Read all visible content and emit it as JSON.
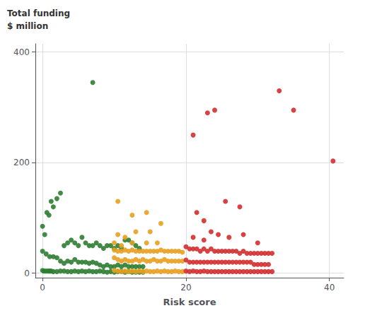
{
  "chart_data": {
    "type": "scatter",
    "xlabel": "Risk score",
    "ylabel": "Total funding\n$ million",
    "xlim": [
      -1,
      42
    ],
    "ylim": [
      -8,
      415
    ],
    "xticks": [
      0,
      20,
      40
    ],
    "yticks": [
      0,
      200,
      400
    ],
    "grid": true,
    "series": [
      {
        "color": "#2e7d32",
        "x": [
          0.0,
          0.3,
          0.6,
          0.9,
          1.2,
          1.5,
          2.0,
          2.5,
          3.0,
          3.5,
          4.0,
          4.5,
          5.0,
          5.5,
          6.0,
          6.5,
          7.0,
          7.5,
          8.0,
          8.5,
          9.0,
          9.5,
          10.0,
          10.5,
          11.0,
          11.5,
          12.0,
          12.5,
          13.0,
          13.5,
          7.0,
          0.0,
          0.5,
          1.0,
          1.5,
          2.0,
          2.5,
          3.0,
          3.5,
          4.0,
          4.5,
          5.0,
          5.5,
          6.0,
          6.5,
          7.0,
          7.5,
          8.0,
          8.5,
          9.0,
          9.5,
          10.0,
          10.5,
          11.0,
          11.5,
          12.0,
          12.5,
          13.0,
          13.5,
          14.0,
          0.0,
          0.2,
          0.5,
          0.8,
          1.0,
          1.2,
          1.5,
          2.0,
          2.5,
          3.0,
          3.5,
          4.0,
          4.5,
          5.0,
          5.5,
          6.0,
          6.5,
          7.0,
          7.5,
          8.0,
          8.5,
          9.0,
          9.5,
          10.0,
          10.5,
          11.0,
          11.5,
          12.0,
          12.5,
          13.0,
          13.5,
          14.0
        ],
        "values": [
          85,
          70,
          110,
          105,
          130,
          120,
          135,
          145,
          50,
          55,
          60,
          55,
          50,
          65,
          55,
          50,
          50,
          55,
          50,
          45,
          50,
          50,
          45,
          50,
          45,
          60,
          60,
          55,
          50,
          45,
          345,
          40,
          35,
          30,
          30,
          28,
          22,
          18,
          22,
          20,
          25,
          20,
          20,
          20,
          18,
          20,
          18,
          15,
          12,
          15,
          12,
          12,
          15,
          12,
          15,
          12,
          12,
          12,
          12,
          12,
          5,
          4,
          4,
          4,
          4,
          4,
          3,
          3,
          4,
          4,
          3,
          3,
          4,
          3,
          4,
          3,
          4,
          3,
          3,
          4,
          3,
          2,
          3,
          2,
          3,
          3,
          2,
          3,
          2,
          2,
          2,
          2
        ]
      },
      {
        "color": "#e8a020",
        "x": [
          10.5,
          12.5,
          14.5,
          16.5,
          10.5,
          11.5,
          13.0,
          15.0,
          10.0,
          11.0,
          12.5,
          14.5,
          16.0,
          10.0,
          10.5,
          11.0,
          11.5,
          12.0,
          12.5,
          13.0,
          13.5,
          14.0,
          14.5,
          15.0,
          15.5,
          16.0,
          16.5,
          17.0,
          17.5,
          18.0,
          18.5,
          19.0,
          19.5,
          10.0,
          10.5,
          11.0,
          11.5,
          12.0,
          12.5,
          13.0,
          13.5,
          14.0,
          14.5,
          15.0,
          15.5,
          16.0,
          16.5,
          17.0,
          17.5,
          18.0,
          18.5,
          19.0,
          19.5,
          10.0,
          10.5,
          11.0,
          11.5,
          12.0,
          12.5,
          13.0,
          13.5,
          14.0,
          14.5,
          15.0,
          15.5,
          16.0,
          16.5,
          17.0,
          17.5,
          18.0,
          18.5,
          19.0,
          19.5
        ],
        "values": [
          130,
          105,
          110,
          90,
          70,
          65,
          75,
          75,
          55,
          50,
          55,
          55,
          55,
          42,
          40,
          40,
          42,
          40,
          42,
          40,
          40,
          40,
          40,
          40,
          40,
          40,
          42,
          40,
          40,
          40,
          40,
          40,
          38,
          28,
          25,
          22,
          25,
          22,
          22,
          25,
          22,
          25,
          22,
          22,
          25,
          22,
          22,
          25,
          22,
          22,
          22,
          22,
          22,
          5,
          4,
          3,
          4,
          3,
          4,
          3,
          4,
          3,
          4,
          3,
          3,
          4,
          3,
          4,
          3,
          3,
          4,
          3,
          3
        ]
      },
      {
        "color": "#d32f2f",
        "x": [
          21.0,
          23.0,
          24.0,
          33.0,
          35.0,
          40.5,
          21.5,
          22.5,
          25.5,
          27.5,
          21.0,
          22.5,
          23.5,
          24.5,
          26.0,
          28.0,
          30.0,
          20.0,
          20.5,
          21.0,
          21.5,
          22.0,
          22.5,
          23.0,
          23.5,
          24.0,
          24.5,
          25.0,
          25.5,
          26.0,
          26.5,
          27.0,
          27.5,
          28.0,
          28.5,
          29.0,
          29.5,
          30.0,
          30.5,
          31.0,
          31.5,
          32.0,
          20.0,
          20.5,
          21.0,
          21.5,
          22.0,
          22.5,
          23.0,
          23.5,
          24.0,
          24.5,
          25.0,
          25.5,
          26.0,
          26.5,
          27.0,
          27.5,
          28.0,
          28.5,
          29.0,
          29.5,
          30.0,
          30.5,
          31.0,
          31.5,
          20.0,
          20.5,
          21.0,
          21.5,
          22.0,
          22.5,
          23.0,
          23.5,
          24.0,
          24.5,
          25.0,
          25.5,
          26.0,
          26.5,
          27.0,
          27.5,
          28.0,
          28.5,
          29.0,
          29.5,
          30.0,
          30.5,
          31.0,
          31.5,
          32.0
        ],
        "values": [
          250,
          290,
          295,
          330,
          295,
          203,
          110,
          95,
          130,
          120,
          65,
          60,
          75,
          70,
          65,
          70,
          55,
          48,
          44,
          44,
          44,
          40,
          44,
          40,
          44,
          40,
          40,
          40,
          40,
          40,
          40,
          40,
          36,
          40,
          36,
          36,
          36,
          36,
          36,
          36,
          36,
          36,
          24,
          20,
          20,
          20,
          20,
          20,
          20,
          20,
          20,
          20,
          20,
          20,
          20,
          20,
          20,
          20,
          20,
          20,
          20,
          16,
          16,
          16,
          16,
          16,
          4,
          3,
          4,
          3,
          3,
          4,
          3,
          3,
          3,
          3,
          3,
          3,
          3,
          3,
          3,
          3,
          3,
          3,
          3,
          3,
          3,
          3,
          3,
          3,
          3
        ]
      }
    ]
  }
}
